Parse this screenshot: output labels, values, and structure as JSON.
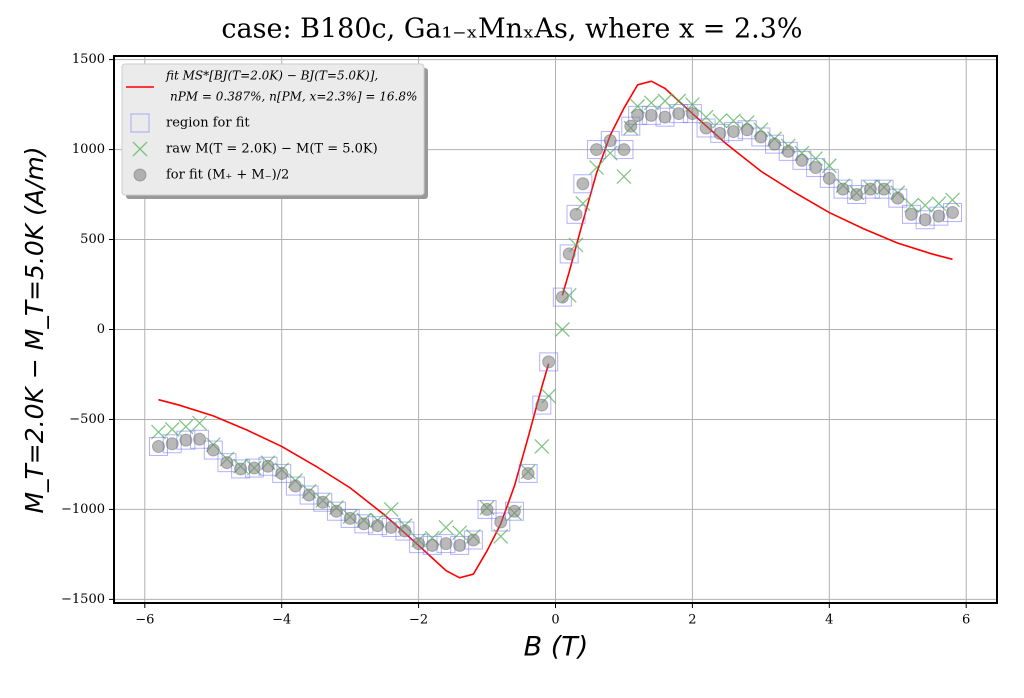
{
  "chart_data": {
    "type": "scatter",
    "title": "case: B180c, Ga₁₋ₓMnₓAs, where x = 2.3%",
    "x_label": "B (T)",
    "y_label": "M_T=2.0K − M_T=5.0K (A/m)",
    "xlim": [
      -6.45,
      6.45
    ],
    "ylim": [
      -1520,
      1520
    ],
    "xticks": [
      {
        "value": -6,
        "label": "−6"
      },
      {
        "value": -4,
        "label": "−4"
      },
      {
        "value": -2,
        "label": "−2"
      },
      0,
      2,
      4,
      6
    ],
    "yticks": [
      {
        "value": -1500,
        "label": "−1500"
      },
      {
        "value": -1000,
        "label": "−1000"
      },
      {
        "value": -500,
        "label": "−500"
      },
      0,
      500,
      1000,
      1500
    ],
    "grid": true,
    "legend": "upper left",
    "fit_params": "nPM = 0.387%, n[PM, x=2.3%] = 16.8%",
    "series": [
      {
        "name": "fit MS*[BJ(T=2.0K) − BJ(T=5.0K)],",
        "kind": "line",
        "color": "#ff0000",
        "x": [
          -5.8,
          -5.5,
          -5,
          -4.5,
          -4,
          -3.5,
          -3,
          -2.5,
          -2,
          -1.8,
          -1.6,
          -1.4,
          -1.2,
          -1,
          -0.8,
          -0.6,
          -0.4,
          -0.2,
          -0.1,
          null,
          0.1,
          0.2,
          0.4,
          0.6,
          0.8,
          1,
          1.2,
          1.4,
          1.6,
          1.8,
          2,
          2.5,
          3,
          3.5,
          4,
          4.5,
          5,
          5.5,
          5.8
        ],
        "values": [
          -390,
          -420,
          -480,
          -560,
          -650,
          -760,
          -880,
          -1030,
          -1200,
          -1270,
          -1340,
          -1380,
          -1360,
          -1230,
          -1080,
          -870,
          -600,
          -320,
          -190,
          null,
          190,
          320,
          600,
          870,
          1080,
          1230,
          1360,
          1380,
          1340,
          1270,
          1200,
          1030,
          880,
          760,
          650,
          560,
          480,
          420,
          390
        ]
      },
      {
        "name": "region for fit",
        "kind": "square",
        "color": "#6666ff",
        "x": [
          -5.8,
          -5.6,
          -5.4,
          -5.2,
          -5.0,
          -4.8,
          -4.6,
          -4.4,
          -4.2,
          -4.0,
          -3.8,
          -3.6,
          -3.4,
          -3.2,
          -3.0,
          -2.8,
          -2.6,
          -2.4,
          -2.2,
          -2.0,
          -1.8,
          -1.6,
          -1.4,
          -1.2,
          -1.0,
          -0.8,
          -0.6,
          -0.4,
          -0.2,
          -0.1,
          0.1,
          0.2,
          0.3,
          0.4,
          0.6,
          0.8,
          1.0,
          1.1,
          1.2,
          1.4,
          1.6,
          1.8,
          2.0,
          2.2,
          2.4,
          2.6,
          2.8,
          3.0,
          3.2,
          3.4,
          3.6,
          3.8,
          4.0,
          4.2,
          4.4,
          4.6,
          4.8,
          5.0,
          5.2,
          5.4,
          5.6,
          5.8
        ],
        "values": [
          -650,
          -635,
          -615,
          -610,
          -670,
          -740,
          -775,
          -770,
          -760,
          -800,
          -870,
          -920,
          -960,
          -1010,
          -1050,
          -1080,
          -1090,
          -1100,
          -1120,
          -1190,
          -1200,
          -1190,
          -1200,
          -1170,
          -1000,
          -1070,
          -1010,
          -800,
          -420,
          -180,
          180,
          420,
          640,
          810,
          1000,
          1050,
          1000,
          1130,
          1190,
          1190,
          1180,
          1200,
          1200,
          1120,
          1090,
          1100,
          1110,
          1070,
          1030,
          990,
          940,
          900,
          840,
          780,
          750,
          780,
          780,
          730,
          640,
          610,
          630,
          650
        ]
      },
      {
        "name": "raw M(T = 2.0K) − M(T = 5.0K)",
        "kind": "cross",
        "color": "#4caf50",
        "x": [
          -5.8,
          -5.6,
          -5.4,
          -5.2,
          -5.0,
          -4.8,
          -4.6,
          -4.4,
          -4.2,
          -4.0,
          -3.8,
          -3.6,
          -3.4,
          -3.2,
          -3.0,
          -2.8,
          -2.6,
          -2.4,
          -2.2,
          -2.0,
          -1.8,
          -1.6,
          -1.4,
          -1.2,
          -1.0,
          -0.8,
          -0.6,
          -0.4,
          -0.2,
          -0.1,
          0.1,
          0.2,
          0.3,
          0.4,
          0.6,
          0.8,
          1.0,
          1.1,
          1.2,
          1.4,
          1.6,
          1.8,
          2.0,
          2.2,
          2.4,
          2.6,
          2.8,
          3.0,
          3.2,
          3.4,
          3.6,
          3.8,
          4.0,
          4.2,
          4.4,
          4.6,
          4.8,
          5.0,
          5.2,
          5.4,
          5.6,
          5.8
        ],
        "values": [
          -570,
          -555,
          -540,
          -520,
          -640,
          -720,
          -760,
          -770,
          -740,
          -780,
          -840,
          -900,
          -950,
          -990,
          -1040,
          -1060,
          -1060,
          -1000,
          -1090,
          -1170,
          -1160,
          -1100,
          -1130,
          -1150,
          -990,
          -1150,
          -1020,
          -790,
          -650,
          -370,
          0,
          190,
          470,
          700,
          900,
          980,
          850,
          1120,
          1240,
          1260,
          1270,
          1270,
          1250,
          1180,
          1160,
          1160,
          1150,
          1110,
          1060,
          1020,
          980,
          950,
          910,
          800,
          760,
          790,
          790,
          760,
          690,
          690,
          700,
          720
        ]
      },
      {
        "name": "for fit (M₊ + M₋)/2",
        "kind": "circle",
        "color": "#808080",
        "x": [
          -5.8,
          -5.6,
          -5.4,
          -5.2,
          -5.0,
          -4.8,
          -4.6,
          -4.4,
          -4.2,
          -4.0,
          -3.8,
          -3.6,
          -3.4,
          -3.2,
          -3.0,
          -2.8,
          -2.6,
          -2.4,
          -2.2,
          -2.0,
          -1.8,
          -1.6,
          -1.4,
          -1.2,
          -1.0,
          -0.8,
          -0.6,
          -0.4,
          -0.2,
          -0.1,
          0.1,
          0.2,
          0.3,
          0.4,
          0.6,
          0.8,
          1.0,
          1.1,
          1.2,
          1.4,
          1.6,
          1.8,
          2.0,
          2.2,
          2.4,
          2.6,
          2.8,
          3.0,
          3.2,
          3.4,
          3.6,
          3.8,
          4.0,
          4.2,
          4.4,
          4.6,
          4.8,
          5.0,
          5.2,
          5.4,
          5.6,
          5.8
        ],
        "values": [
          -650,
          -635,
          -615,
          -610,
          -670,
          -740,
          -775,
          -770,
          -760,
          -800,
          -870,
          -920,
          -960,
          -1010,
          -1050,
          -1080,
          -1090,
          -1100,
          -1120,
          -1190,
          -1200,
          -1190,
          -1200,
          -1170,
          -1000,
          -1070,
          -1010,
          -800,
          -420,
          -180,
          180,
          420,
          640,
          810,
          1000,
          1050,
          1000,
          1130,
          1190,
          1190,
          1180,
          1200,
          1200,
          1120,
          1090,
          1100,
          1110,
          1070,
          1030,
          990,
          940,
          900,
          840,
          780,
          750,
          780,
          780,
          730,
          640,
          610,
          630,
          650
        ]
      }
    ]
  }
}
